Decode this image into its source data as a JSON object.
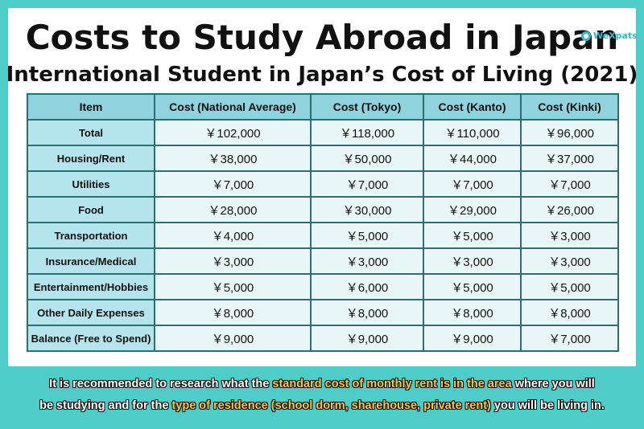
{
  "header": {
    "title": "Costs to Study Abroad in Japan",
    "subtitle": "International Student in Japan’s Cost of Living (2021)",
    "logo_text": "WeXpats"
  },
  "table": {
    "columns": [
      "Item",
      "Cost (National Average)",
      "Cost (Tokyo)",
      "Cost (Kanto)",
      "Cost (Kinki)"
    ],
    "rows": [
      {
        "item": "Total",
        "values": [
          "￥102,000",
          "￥118,000",
          "￥110,000",
          "￥96,000"
        ]
      },
      {
        "item": "Housing/Rent",
        "values": [
          "￥38,000",
          "￥50,000",
          "￥44,000",
          "￥37,000"
        ]
      },
      {
        "item": "Utilities",
        "values": [
          "￥7,000",
          "￥7,000",
          "￥7,000",
          "￥7,000"
        ]
      },
      {
        "item": "Food",
        "values": [
          "￥28,000",
          "￥30,000",
          "￥29,000",
          "￥26,000"
        ]
      },
      {
        "item": "Transportation",
        "values": [
          "￥4,000",
          "￥5,000",
          "￥5,000",
          "￥3,000"
        ]
      },
      {
        "item": "Insurance/Medical",
        "values": [
          "￥3,000",
          "￥3,000",
          "￥3,000",
          "￥3,000"
        ]
      },
      {
        "item": "Entertainment/Hobbies",
        "values": [
          "￥5,000",
          "￥6,000",
          "￥5,000",
          "￥5,000"
        ]
      },
      {
        "item": "Other Daily Expenses",
        "values": [
          "￥8,000",
          "￥8,000",
          "￥8,000",
          "￥8,000"
        ]
      },
      {
        "item": "Balance (Free to Spend)",
        "values": [
          "￥9,000",
          "￥9,000",
          "￥9,000",
          "￥7,000"
        ]
      }
    ]
  },
  "footer": {
    "line1_a": "It is recommended to research what the ",
    "line1_hl": "standard cost of monthly rent is in the area",
    "line1_b": " where you will",
    "line2_a": "be studying and for the ",
    "line2_hl": "type of residence (school dorm, sharehouse, private rent)",
    "line2_b": " you will be living in."
  },
  "colors": {
    "background": "#4ecdc8",
    "header_cell": "#8fd3df",
    "item_cell": "#b4e4ec",
    "value_cell": "#e8f6f8",
    "highlight_text": "#f6c84a"
  }
}
